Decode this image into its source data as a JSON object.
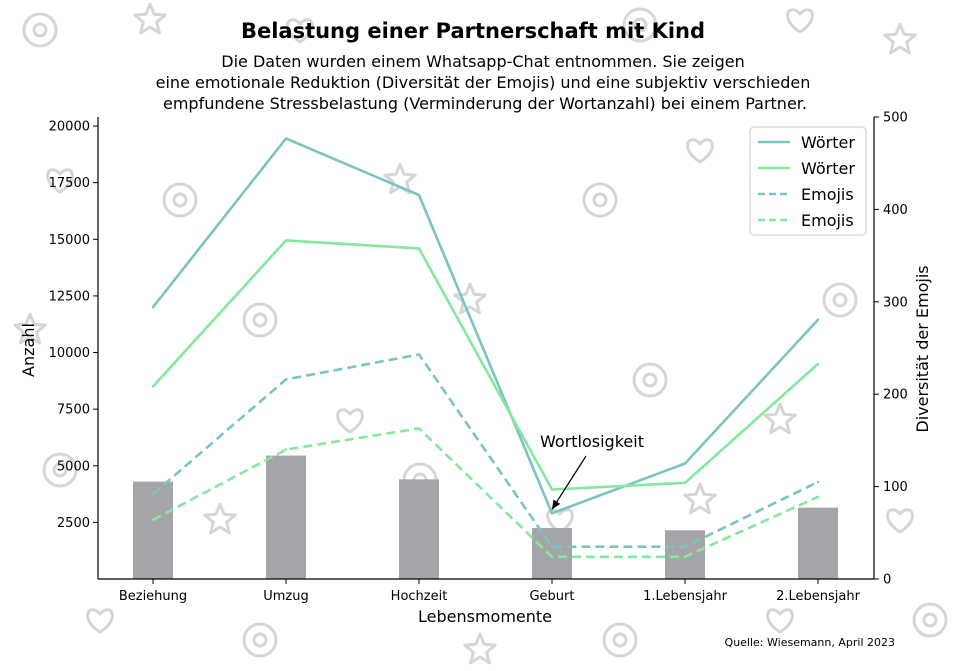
{
  "chart_data": {
    "type": "line",
    "title": "Belastung einer Partnerschaft mit Kind",
    "subtitle_lines": [
      "Die Daten wurden einem Whatsapp-Chat entnommen. Sie zeigen",
      "eine emotionale Reduktion (Diversität der Emojis) und eine subjektiv verschieden",
      "empfundene Stressbelastung (Verminderung der Wortanzahl) bei einem Partner."
    ],
    "xlabel": "Lebensmomente",
    "ylabel_left": "Anzahl",
    "ylabel_right": "Diversität der Emojis",
    "categories": [
      "Beziehung",
      "Umzug",
      "Hochzeit",
      "Geburt",
      "1.Lebensjahr",
      "2.Lebensjahr"
    ],
    "ylim_left": [
      0,
      20400
    ],
    "ylim_right": [
      0,
      500
    ],
    "yticks_left": [
      2500,
      5000,
      7500,
      10000,
      12500,
      15000,
      17500,
      20000
    ],
    "yticks_left_labels": [
      "2500",
      "5000",
      "7500",
      "10000",
      "12500",
      "15000",
      "17500",
      "20000"
    ],
    "yticks_right": [
      0,
      100,
      200,
      300,
      400,
      500
    ],
    "yticks_right_labels": [
      "0",
      "100",
      "200",
      "300",
      "400",
      "500"
    ],
    "grid": false,
    "legend_position": "top-right",
    "series": [
      {
        "name": "Wörter",
        "axis": "left",
        "style": "solid",
        "color": "#7cc5bd",
        "values": [
          12000,
          19450,
          16950,
          2900,
          5100,
          11450
        ]
      },
      {
        "name": "Wörter",
        "axis": "left",
        "style": "solid",
        "color": "#84e89e",
        "values": [
          8500,
          14950,
          14600,
          3950,
          4250,
          9500
        ]
      },
      {
        "name": "Emojis",
        "axis": "right",
        "style": "dashed",
        "color": "#7cc5bd",
        "values": [
          92,
          216,
          243,
          35,
          35,
          105
        ]
      },
      {
        "name": "Emojis",
        "axis": "right",
        "style": "dashed",
        "color": "#84e89e",
        "values": [
          64,
          140,
          163,
          24,
          24,
          89
        ]
      }
    ],
    "bars": {
      "axis": "left",
      "color": "#a3a5a8",
      "values": [
        4300,
        5450,
        4400,
        2250,
        2150,
        3150
      ]
    },
    "annotation": {
      "text": "Wortlosigkeit",
      "category": "Geburt",
      "value": 2900
    },
    "source": "Quelle: Wiesemann, April 2023"
  }
}
